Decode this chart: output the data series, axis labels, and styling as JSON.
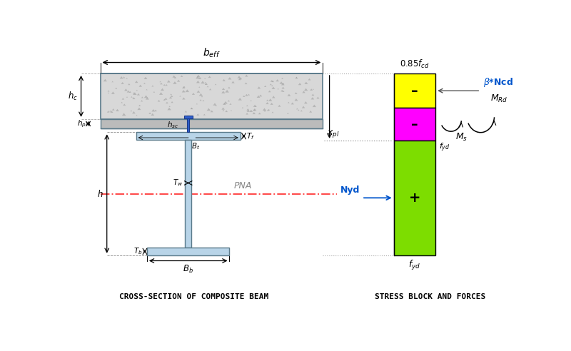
{
  "bg_color": "#ffffff",
  "title_left": "CROSS-SECTION OF COMPOSITE BEAM",
  "title_right": "STRESS BLOCK AND FORCES",
  "concrete_color": "#d8d8d8",
  "steel_color": "#b8d4e8",
  "steel_edge": "#5a7a8a",
  "stud_color": "#3060cc",
  "stud_edge": "#1a3a8a",
  "yellow_block": "#ffff00",
  "magenta_block": "#ff00ff",
  "green_block": "#7ddd00",
  "pna_color": "#ff3333",
  "blue_label": "#0055cc",
  "dim_color": "#000000",
  "gray_dot": "#999999"
}
